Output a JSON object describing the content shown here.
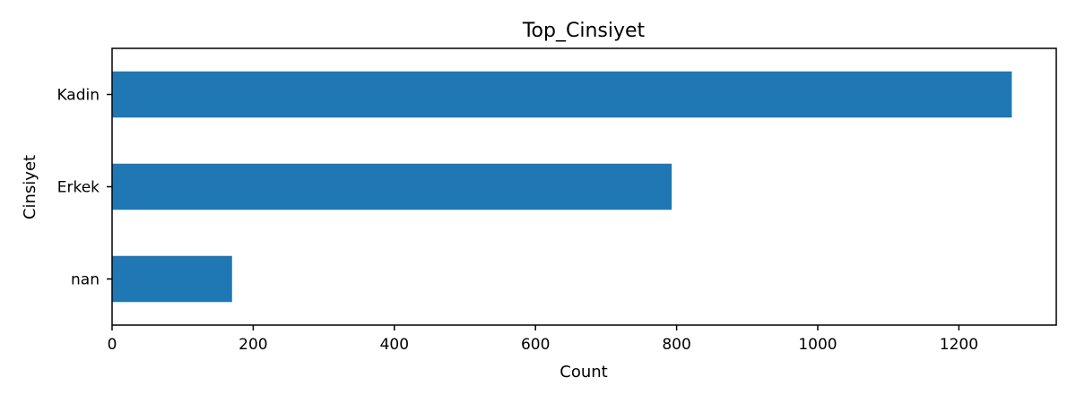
{
  "chart_data": {
    "type": "bar",
    "orientation": "horizontal",
    "title": "Top_Cinsiyet",
    "xlabel": "Count",
    "ylabel": "Cinsiyet",
    "categories": [
      "Kadin",
      "Erkek",
      "nan"
    ],
    "values": [
      1275,
      793,
      170
    ],
    "xlim": [
      0,
      1338
    ],
    "xticks": [
      0,
      200,
      400,
      600,
      800,
      1000,
      1200
    ],
    "grid": false,
    "bar_color": "#1f77b4"
  }
}
